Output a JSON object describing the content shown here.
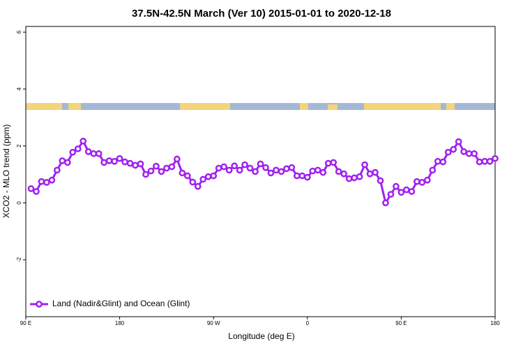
{
  "chart_data": {
    "type": "line",
    "title": "37.5N-42.5N March (Ver 10)   2015-01-01 to 2020-12-18",
    "x_label": "Longitude (deg E)",
    "y_label": "XCO2 - MLO trend (ppm)",
    "x": [
      95,
      100,
      105,
      110,
      115,
      120,
      125,
      130,
      135,
      140,
      145,
      150,
      155,
      160,
      165,
      170,
      175,
      180,
      185,
      190,
      195,
      200,
      205,
      210,
      215,
      220,
      225,
      230,
      235,
      240,
      245,
      250,
      255,
      260,
      265,
      270,
      275,
      280,
      285,
      290,
      295,
      300,
      305,
      310,
      315,
      320,
      325,
      330,
      335,
      340,
      345,
      350,
      355,
      360,
      365,
      370,
      375,
      380,
      385,
      390,
      395,
      400,
      405,
      410,
      415,
      420,
      425,
      430,
      435,
      440,
      445,
      450,
      455,
      460,
      465,
      470,
      475,
      480,
      485,
      490,
      495,
      500,
      505,
      510,
      515,
      520,
      525,
      530,
      535,
      540
    ],
    "series": [
      {
        "name": "Land (Nadir&Glint) and Ocean (Glint)",
        "color": "#a020f0",
        "values": [
          0.5,
          0.4,
          0.75,
          0.72,
          0.8,
          1.15,
          1.48,
          1.42,
          1.78,
          1.9,
          2.17,
          1.8,
          1.73,
          1.73,
          1.42,
          1.48,
          1.46,
          1.56,
          1.44,
          1.39,
          1.32,
          1.37,
          1.0,
          1.12,
          1.29,
          1.1,
          1.22,
          1.27,
          1.54,
          1.05,
          0.95,
          0.73,
          0.58,
          0.83,
          0.92,
          0.95,
          1.22,
          1.27,
          1.15,
          1.3,
          1.15,
          1.34,
          1.22,
          1.1,
          1.37,
          1.24,
          1.05,
          1.15,
          1.1,
          1.2,
          1.24,
          0.95,
          0.95,
          0.9,
          1.12,
          1.15,
          1.07,
          1.39,
          1.42,
          1.1,
          1.02,
          0.85,
          0.88,
          0.92,
          1.34,
          1.02,
          1.07,
          0.78,
          0.0,
          0.3,
          0.58,
          0.37,
          0.46,
          0.4,
          0.75,
          0.72,
          0.8,
          1.15,
          1.46,
          1.44,
          1.78,
          1.88,
          2.15,
          1.8,
          1.73,
          1.73,
          1.44,
          1.46,
          1.46,
          1.56
        ]
      }
    ],
    "xlim": [
      90,
      540
    ],
    "xticks": [
      {
        "value": 90,
        "label": "90 E"
      },
      {
        "value": 180,
        "label": "180"
      },
      {
        "value": 270,
        "label": "90 W"
      },
      {
        "value": 360,
        "label": "0"
      },
      {
        "value": 450,
        "label": "90 E"
      },
      {
        "value": 540,
        "label": "180"
      }
    ],
    "ylim": [
      -4,
      6.2
    ],
    "yticks": [
      -2,
      0,
      2,
      4,
      6
    ],
    "legend": "bottomleft"
  }
}
